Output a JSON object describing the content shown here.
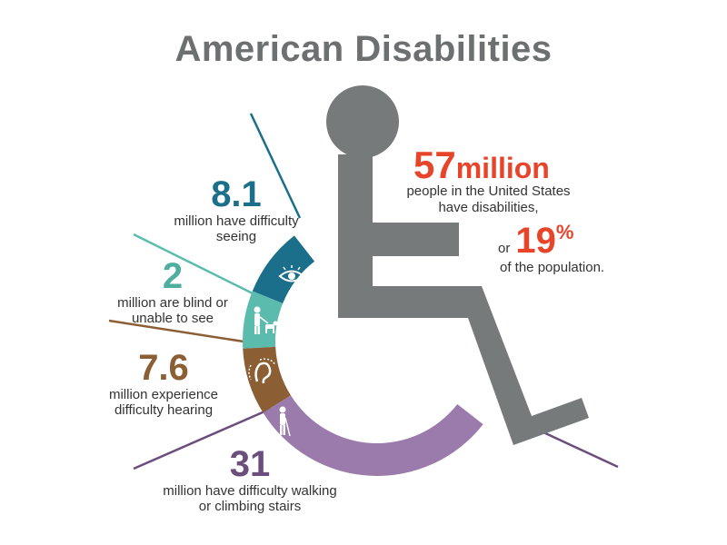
{
  "title": "American Disabilities",
  "headline": {
    "value": "57",
    "unit": "million",
    "text": "people in the United States have disabilities,",
    "or": "or",
    "percent": "19",
    "percent_sign": "%",
    "percent_text": "of the population."
  },
  "colors": {
    "title": "#6d7070",
    "accent": "#e8442a",
    "wheelchair": "#767a7a",
    "seeing": "#1b6f8a",
    "blind": "#5bbcae",
    "hearing": "#8b5e34",
    "walking": "#9b7aac"
  },
  "chart_data": {
    "type": "pie",
    "title": "American Disabilities",
    "unit": "million",
    "slices": [
      {
        "value": "8.1",
        "label": "million have difficulty seeing",
        "icon": "eye-icon",
        "color": "#1b6f8a"
      },
      {
        "value": "2",
        "label": "million are blind or unable to see",
        "icon": "guide-dog-icon",
        "color": "#5bbcae"
      },
      {
        "value": "7.6",
        "label": "million experience difficulty hearing",
        "icon": "ear-icon",
        "color": "#8b5e34"
      },
      {
        "value": "31",
        "label": "million have difficulty walking or climbing stairs",
        "icon": "cane-walker-icon",
        "color": "#9b7aac"
      }
    ]
  }
}
